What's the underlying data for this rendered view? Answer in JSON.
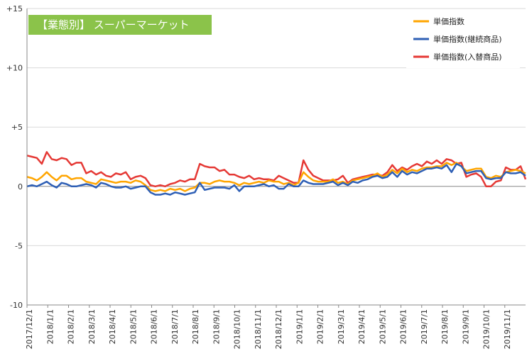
{
  "chart_data": {
    "type": "line",
    "title": "【業態別】 スーパーマーケット",
    "title_box_color": "#8BC34A",
    "ylim": [
      -10,
      15
    ],
    "y_ticks": [
      {
        "value": -10,
        "label": "-10"
      },
      {
        "value": -5,
        "label": "-5"
      },
      {
        "value": 0,
        "label": "0"
      },
      {
        "value": 5,
        "label": "+5"
      },
      {
        "value": 10,
        "label": "+10"
      },
      {
        "value": 15,
        "label": "+15"
      }
    ],
    "x_tick_labels": [
      "2017/12/1",
      "2018/1/1",
      "2018/2/1",
      "2018/3/1",
      "2018/4/1",
      "2018/5/1",
      "2018/6/1",
      "2018/7/1",
      "2018/8/1",
      "2018/9/1",
      "2018/10/1",
      "2018/11/1",
      "2018/12/1",
      "2019/1/1",
      "2019/2/1",
      "2019/3/1",
      "2019/4/1",
      "2019/5/1",
      "2019/6/1",
      "2019/7/1",
      "2019/8/1",
      "2019/9/1",
      "2019/10/1",
      "2019/11/1"
    ],
    "grid": "horizontal",
    "legend_position": "top-right",
    "series": [
      {
        "name": "単価指数",
        "color": "#FFA500",
        "values": [
          0.8,
          0.7,
          0.5,
          0.8,
          1.2,
          0.8,
          0.5,
          0.9,
          0.9,
          0.6,
          0.7,
          0.7,
          0.4,
          0.3,
          0.2,
          0.6,
          0.5,
          0.4,
          0.3,
          0.4,
          0.4,
          0.3,
          0.5,
          0.4,
          0.1,
          -0.3,
          -0.4,
          -0.3,
          -0.4,
          -0.2,
          -0.3,
          -0.2,
          -0.4,
          -0.2,
          -0.1,
          0.3,
          0.3,
          0.2,
          0.4,
          0.5,
          0.4,
          0.4,
          0.3,
          0.1,
          0.3,
          0.2,
          0.3,
          0.4,
          0.3,
          0.5,
          0.4,
          0.4,
          0.2,
          0.3,
          0.1,
          0.3,
          1.2,
          0.8,
          0.5,
          0.4,
          0.4,
          0.4,
          0.6,
          0.3,
          0.4,
          0.2,
          0.5,
          0.6,
          0.7,
          0.8,
          0.9,
          1.1,
          0.8,
          1.0,
          1.4,
          1.1,
          1.5,
          1.2,
          1.4,
          1.3,
          1.5,
          1.6,
          1.6,
          1.7,
          1.7,
          2.0,
          1.8,
          2.0,
          1.7,
          1.3,
          1.4,
          1.5,
          1.5,
          0.8,
          0.7,
          0.9,
          0.8,
          1.2,
          1.3,
          1.4,
          1.3,
          1.1
        ]
      },
      {
        "name": "単価指数(継続商品)",
        "color": "#2E5FB5",
        "values": [
          0.0,
          0.1,
          0.0,
          0.2,
          0.4,
          0.1,
          -0.1,
          0.3,
          0.2,
          0.0,
          0.0,
          0.1,
          0.2,
          0.1,
          -0.1,
          0.3,
          0.2,
          0.0,
          -0.1,
          -0.1,
          0.0,
          -0.2,
          -0.1,
          0.0,
          0.0,
          -0.5,
          -0.7,
          -0.7,
          -0.6,
          -0.7,
          -0.5,
          -0.6,
          -0.7,
          -0.6,
          -0.5,
          0.3,
          -0.3,
          -0.2,
          -0.1,
          -0.1,
          -0.1,
          -0.2,
          0.1,
          -0.4,
          0.0,
          0.0,
          0.0,
          0.1,
          0.2,
          0.0,
          0.1,
          -0.2,
          -0.2,
          0.2,
          0.0,
          0.0,
          0.5,
          0.3,
          0.2,
          0.2,
          0.2,
          0.3,
          0.4,
          0.1,
          0.3,
          0.1,
          0.4,
          0.3,
          0.5,
          0.6,
          0.8,
          0.9,
          0.7,
          0.8,
          1.2,
          0.8,
          1.3,
          1.0,
          1.2,
          1.1,
          1.3,
          1.5,
          1.5,
          1.6,
          1.5,
          1.8,
          1.2,
          1.9,
          1.7,
          1.1,
          1.2,
          1.3,
          1.3,
          0.7,
          0.6,
          0.7,
          0.7,
          1.2,
          1.1,
          1.1,
          1.2,
          0.9
        ]
      },
      {
        "name": "単価指数(入替商品)",
        "color": "#E53935",
        "values": [
          2.6,
          2.5,
          2.4,
          1.9,
          2.9,
          2.3,
          2.2,
          2.4,
          2.3,
          1.8,
          2.0,
          2.0,
          1.1,
          1.3,
          1.0,
          1.2,
          0.9,
          0.8,
          1.1,
          1.0,
          1.2,
          0.6,
          0.8,
          0.9,
          0.7,
          0.1,
          0.0,
          0.1,
          0.0,
          0.2,
          0.3,
          0.5,
          0.4,
          0.6,
          0.6,
          1.9,
          1.7,
          1.6,
          1.6,
          1.3,
          1.4,
          1.0,
          1.0,
          0.8,
          0.7,
          0.9,
          0.6,
          0.7,
          0.6,
          0.6,
          0.5,
          0.9,
          0.7,
          0.5,
          0.3,
          0.3,
          2.2,
          1.4,
          0.9,
          0.7,
          0.5,
          0.5,
          0.5,
          0.6,
          0.9,
          0.3,
          0.6,
          0.7,
          0.8,
          0.9,
          1.0,
          1.0,
          0.9,
          1.2,
          1.8,
          1.3,
          1.6,
          1.4,
          1.7,
          1.9,
          1.7,
          2.1,
          1.9,
          2.2,
          1.9,
          2.3,
          2.2,
          1.9,
          2.0,
          0.8,
          1.0,
          1.1,
          0.8,
          0.0,
          0.0,
          0.4,
          0.5,
          1.6,
          1.4,
          1.4,
          1.7,
          0.6
        ]
      }
    ]
  }
}
